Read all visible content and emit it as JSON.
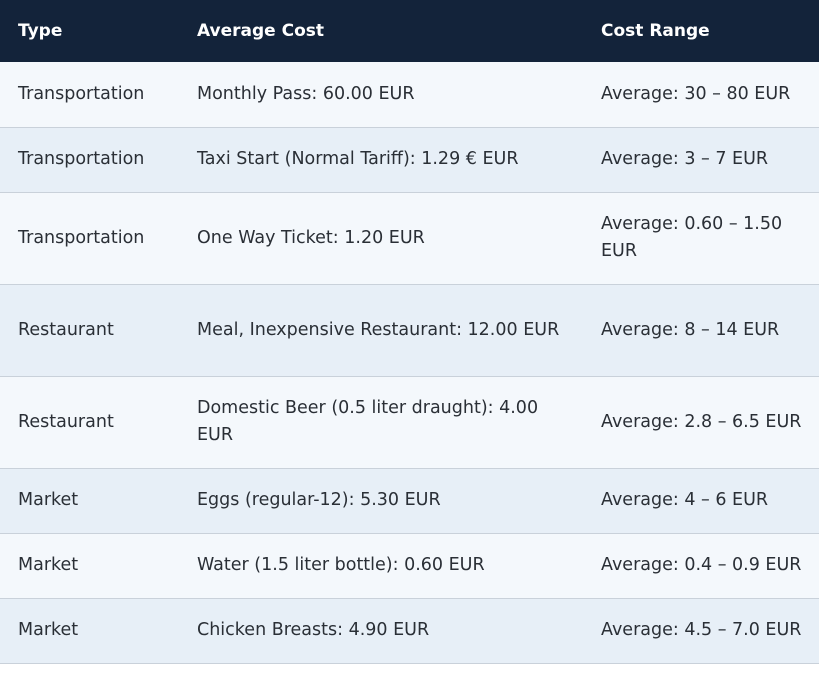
{
  "table": {
    "headers": [
      "Type",
      "Average Cost",
      "Cost Range"
    ],
    "rows": [
      {
        "type": "Transportation",
        "average_cost": "Monthly Pass: 60.00 EUR",
        "cost_range": "Average: 30 – 80 EUR"
      },
      {
        "type": "Transportation",
        "average_cost": "Taxi Start (Normal Tariff): 1.29 € EUR",
        "cost_range": "Average: 3 – 7 EUR"
      },
      {
        "type": "Transportation",
        "average_cost": "One Way Ticket: 1.20 EUR",
        "cost_range": "Average: 0.60 – 1.50 EUR"
      },
      {
        "type": "Restaurant",
        "average_cost": "Meal, Inexpensive Restaurant: 12.00 EUR",
        "cost_range": "Average: 8 – 14 EUR"
      },
      {
        "type": "Restaurant",
        "average_cost": "Domestic Beer (0.5 liter draught): 4.00 EUR",
        "cost_range": "Average: 2.8 – 6.5 EUR"
      },
      {
        "type": "Market",
        "average_cost": "Eggs (regular-12): 5.30 EUR",
        "cost_range": "Average: 4 – 6 EUR"
      },
      {
        "type": "Market",
        "average_cost": "Water (1.5 liter bottle): 0.60 EUR",
        "cost_range": "Average: 0.4 – 0.9 EUR"
      },
      {
        "type": "Market",
        "average_cost": "Chicken Breasts: 4.90 EUR",
        "cost_range": "Average: 4.5 – 7.0 EUR"
      }
    ]
  },
  "colors": {
    "header_background": "#13233a",
    "header_text": "#ffffff",
    "row_odd": "#f4f8fc",
    "row_even": "#e7eff7",
    "body_text": "#2a2f36"
  }
}
